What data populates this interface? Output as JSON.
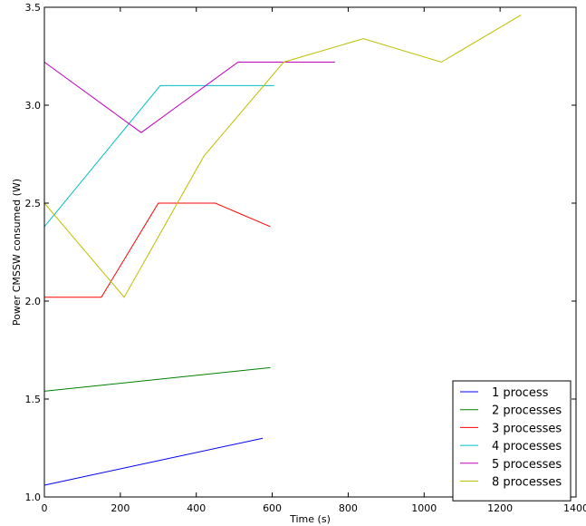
{
  "chart_data": {
    "type": "line",
    "title": "",
    "xlabel": "Time (s)",
    "ylabel": "Power CMSSW consumed (W)",
    "xlim": [
      0,
      1400
    ],
    "ylim": [
      1.0,
      3.5
    ],
    "xticks": [
      0,
      200,
      400,
      600,
      800,
      1000,
      1200,
      1400
    ],
    "yticks": [
      1.0,
      1.5,
      2.0,
      2.5,
      3.0,
      3.5
    ],
    "xtick_labels": [
      "0",
      "200",
      "400",
      "600",
      "800",
      "1000",
      "1200",
      "1400"
    ],
    "ytick_labels": [
      "1.0",
      "1.5",
      "2.0",
      "2.5",
      "3.0",
      "3.5"
    ],
    "grid": false,
    "legend_position": "bottom-right",
    "series": [
      {
        "name": "1 process",
        "color": "#0000ff",
        "x": [
          0,
          575
        ],
        "y": [
          1.06,
          1.3
        ]
      },
      {
        "name": "2 processes",
        "color": "#008000",
        "x": [
          0,
          595
        ],
        "y": [
          1.54,
          1.66
        ]
      },
      {
        "name": "3 processes",
        "color": "#ff0000",
        "x": [
          0,
          150,
          300,
          450,
          595
        ],
        "y": [
          2.02,
          2.02,
          2.5,
          2.5,
          2.38
        ]
      },
      {
        "name": "4 processes",
        "color": "#00bfbf",
        "x": [
          0,
          305,
          605
        ],
        "y": [
          2.38,
          3.1,
          3.1
        ]
      },
      {
        "name": "5 processes",
        "color": "#bf00bf",
        "x": [
          0,
          255,
          510,
          765
        ],
        "y": [
          3.22,
          2.86,
          3.22,
          3.22
        ]
      },
      {
        "name": "8 processes",
        "color": "#bfbf00",
        "x": [
          0,
          210,
          420,
          630,
          840,
          1045,
          1255
        ],
        "y": [
          2.5,
          2.02,
          2.74,
          3.22,
          3.34,
          3.22,
          3.46
        ]
      }
    ]
  }
}
